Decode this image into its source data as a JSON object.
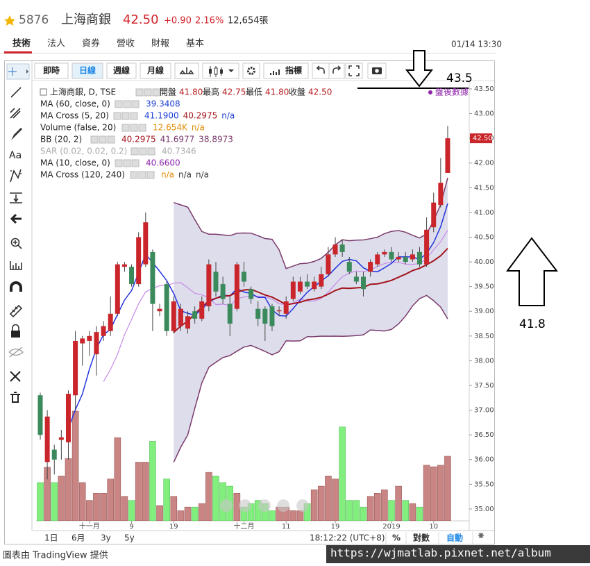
{
  "header": {
    "code": "5876",
    "name": "上海商銀",
    "price": "42.50",
    "change": "+0.90",
    "change_pct": "2.16%",
    "volume": "12,654張"
  },
  "tabs": [
    "技術",
    "法人",
    "資券",
    "營收",
    "財報",
    "基本"
  ],
  "datetime": "01/14 13:30",
  "toolbar": {
    "intervals": [
      "即時",
      "日線",
      "週線",
      "月線"
    ],
    "indicators": "指標"
  },
  "side_text": "Aa",
  "legend": {
    "symbol": "上海商銀, D, TSE",
    "ohlc_labels": [
      "開盤",
      "最高",
      "最低",
      "收盤"
    ],
    "ohlc_values": [
      "41.80",
      "42.75",
      "41.80",
      "42.50"
    ],
    "after_hours": "盤後數據",
    "studies": [
      {
        "name": "MA (60, close, 0)",
        "values": [
          "39.3408"
        ]
      },
      {
        "name": "MA Cross (5, 20)",
        "values": [
          "41.1900",
          "40.2975",
          "n/a"
        ]
      },
      {
        "name": "Volume (false, 20)",
        "values": [
          "12.654K",
          "n/a"
        ]
      },
      {
        "name": "BB (20, 2)",
        "values": [
          "40.2975",
          "41.6977",
          "38.8973"
        ]
      },
      {
        "name": "SAR (0.02, 0.02, 0.2)",
        "values": [
          "40.7346"
        ]
      },
      {
        "name": "MA (10, close, 0)",
        "values": [
          "40.6600"
        ]
      },
      {
        "name": "MA Cross (120, 240)",
        "values": [
          "n/a",
          "n/a",
          "n/a"
        ]
      }
    ]
  },
  "chart_data": {
    "type": "candlestick",
    "categories": [
      null,
      null,
      null,
      null,
      null,
      null,
      null,
      "十一月",
      null,
      null,
      null,
      null,
      null,
      "9",
      null,
      null,
      null,
      null,
      null,
      "19",
      null,
      null,
      null,
      null,
      null,
      null,
      null,
      null,
      null,
      "十二月",
      null,
      null,
      null,
      null,
      null,
      "11",
      null,
      null,
      null,
      null,
      null,
      null,
      "19",
      null,
      null,
      null,
      null,
      null,
      null,
      null,
      "2019",
      null,
      null,
      null,
      null,
      null,
      "10",
      null,
      null
    ],
    "open": [
      37.3,
      35.95,
      36.2,
      36.4,
      36.35,
      37.3,
      38.35,
      38.4,
      38.13,
      38.5,
      38.6,
      38.95,
      39.9,
      39.9,
      39.55,
      39.95,
      40.2,
      39.0,
      39.55,
      38.6,
      38.7,
      38.65,
      39.0,
      38.85,
      39.1,
      39.8,
      39.55,
      39.15,
      39.05,
      39.8,
      39.45,
      39.05,
      39.05,
      39.1,
      39.0,
      38.95,
      39.25,
      39.4,
      39.6,
      39.45,
      39.5,
      39.75,
      40.15,
      40.35,
      40.0,
      39.7,
      39.7,
      39.8,
      39.95,
      40.15,
      40.2,
      40.05,
      40.1,
      40.05,
      40.2,
      39.95,
      40.7,
      41.15,
      41.8
    ],
    "close": [
      36.5,
      36.87,
      36.0,
      36.45,
      37.33,
      38.4,
      38.45,
      38.5,
      38.58,
      38.7,
      38.95,
      39.95,
      39.95,
      39.55,
      40.5,
      40.8,
      39.15,
      39.05,
      38.6,
      39.2,
      39.05,
      38.9,
      38.85,
      39.2,
      39.95,
      39.4,
      39.25,
      38.75,
      39.95,
      39.6,
      39.25,
      38.85,
      38.75,
      38.7,
      39.02,
      39.2,
      39.6,
      39.6,
      39.5,
      39.6,
      39.75,
      40.15,
      40.35,
      40.2,
      39.8,
      39.6,
      39.45,
      40.0,
      40.15,
      40.2,
      40.05,
      40.1,
      40.0,
      40.15,
      39.95,
      40.65,
      41.2,
      41.6,
      42.5
    ],
    "high": [
      37.35,
      37.0,
      36.3,
      36.6,
      37.4,
      38.6,
      38.5,
      38.6,
      38.7,
      38.8,
      39.3,
      40.0,
      40.0,
      39.95,
      40.6,
      41.0,
      40.25,
      39.15,
      39.6,
      39.3,
      39.15,
      39.0,
      39.1,
      39.3,
      40.05,
      40.0,
      39.7,
      39.3,
      40.0,
      40.0,
      39.5,
      39.2,
      39.1,
      39.15,
      39.1,
      39.3,
      39.7,
      39.7,
      39.75,
      39.7,
      39.9,
      40.3,
      40.5,
      40.45,
      40.1,
      39.8,
      39.8,
      40.05,
      40.2,
      40.25,
      40.3,
      40.2,
      40.2,
      40.25,
      40.3,
      40.9,
      41.4,
      42.1,
      42.75
    ],
    "low": [
      36.4,
      35.6,
      35.7,
      36.0,
      36.0,
      37.0,
      37.9,
      38.1,
      37.7,
      38.4,
      38.5,
      38.9,
      39.8,
      39.5,
      39.5,
      39.9,
      38.6,
      38.9,
      38.5,
      38.55,
      38.6,
      38.55,
      38.75,
      38.8,
      39.0,
      39.3,
      39.15,
      38.5,
      39.0,
      39.5,
      39.15,
      38.7,
      38.4,
      38.6,
      38.9,
      38.85,
      39.2,
      39.35,
      39.45,
      39.4,
      39.45,
      39.7,
      40.1,
      40.1,
      39.75,
      39.55,
      39.3,
      39.7,
      39.9,
      40.1,
      40.0,
      40.0,
      39.95,
      40.0,
      39.9,
      39.9,
      40.6,
      41.1,
      41.8
    ],
    "volume": [
      7500,
      10500,
      7500,
      8800,
      12200,
      21500,
      7500,
      4000,
      5400,
      5400,
      8200,
      16300,
      4800,
      4000,
      11500,
      11500,
      15600,
      3000,
      8200,
      4800,
      2000,
      2700,
      2700,
      3400,
      9500,
      8800,
      7500,
      6800,
      5400,
      2700,
      3400,
      4000,
      3400,
      2000,
      2700,
      2700,
      2000,
      2000,
      3400,
      6100,
      6800,
      8800,
      8200,
      18400,
      4000,
      4000,
      2700,
      4800,
      5400,
      6100,
      4000,
      6800,
      4000,
      3400,
      2700,
      10900,
      10600,
      10900,
      12654
    ],
    "up_color": "#c9252b",
    "down_color": "#3b8a5c",
    "volume_up_color": "#c98584",
    "volume_down_color": "#82ee7d",
    "ylim": [
      34.76,
      43.64
    ],
    "yticks": [
      {
        "value": 35,
        "label": "35.00"
      },
      {
        "value": 35.5,
        "label": "35.50"
      },
      {
        "value": 36,
        "label": "36.00"
      },
      {
        "value": 36.5,
        "label": "36.50"
      },
      {
        "value": 37,
        "label": "37.00"
      },
      {
        "value": 37.5,
        "label": "37.50"
      },
      {
        "value": 38,
        "label": "38.00"
      },
      {
        "value": 38.5,
        "label": "38.50"
      },
      {
        "value": 39,
        "label": "39.00"
      },
      {
        "value": 39.5,
        "label": "39.50"
      },
      {
        "value": 40,
        "label": "40.00"
      },
      {
        "value": 40.5,
        "label": "40.50"
      },
      {
        "value": 41,
        "label": "41.00"
      },
      {
        "value": 41.5,
        "label": "41.50"
      },
      {
        "value": 42,
        "label": "42.00"
      },
      {
        "value": 42.5,
        "label": "42.50"
      },
      {
        "value": 43,
        "label": "43.00"
      },
      {
        "value": 43.5,
        "label": "43.50"
      }
    ],
    "price_tag": {
      "value": 42.5,
      "label": "42.50"
    }
  },
  "bottom_bar": {
    "ranges": [
      "1日",
      "6月",
      "3y",
      "5y"
    ],
    "clock": "18:12:22 (UTC+8)",
    "options": [
      "%",
      "對數",
      "自動"
    ]
  },
  "footer": "圖表由 TradingView 提供",
  "watermark": "https://wjmatlab.pixnet.net/album",
  "annotations": [
    "43.5",
    "41.8"
  ]
}
